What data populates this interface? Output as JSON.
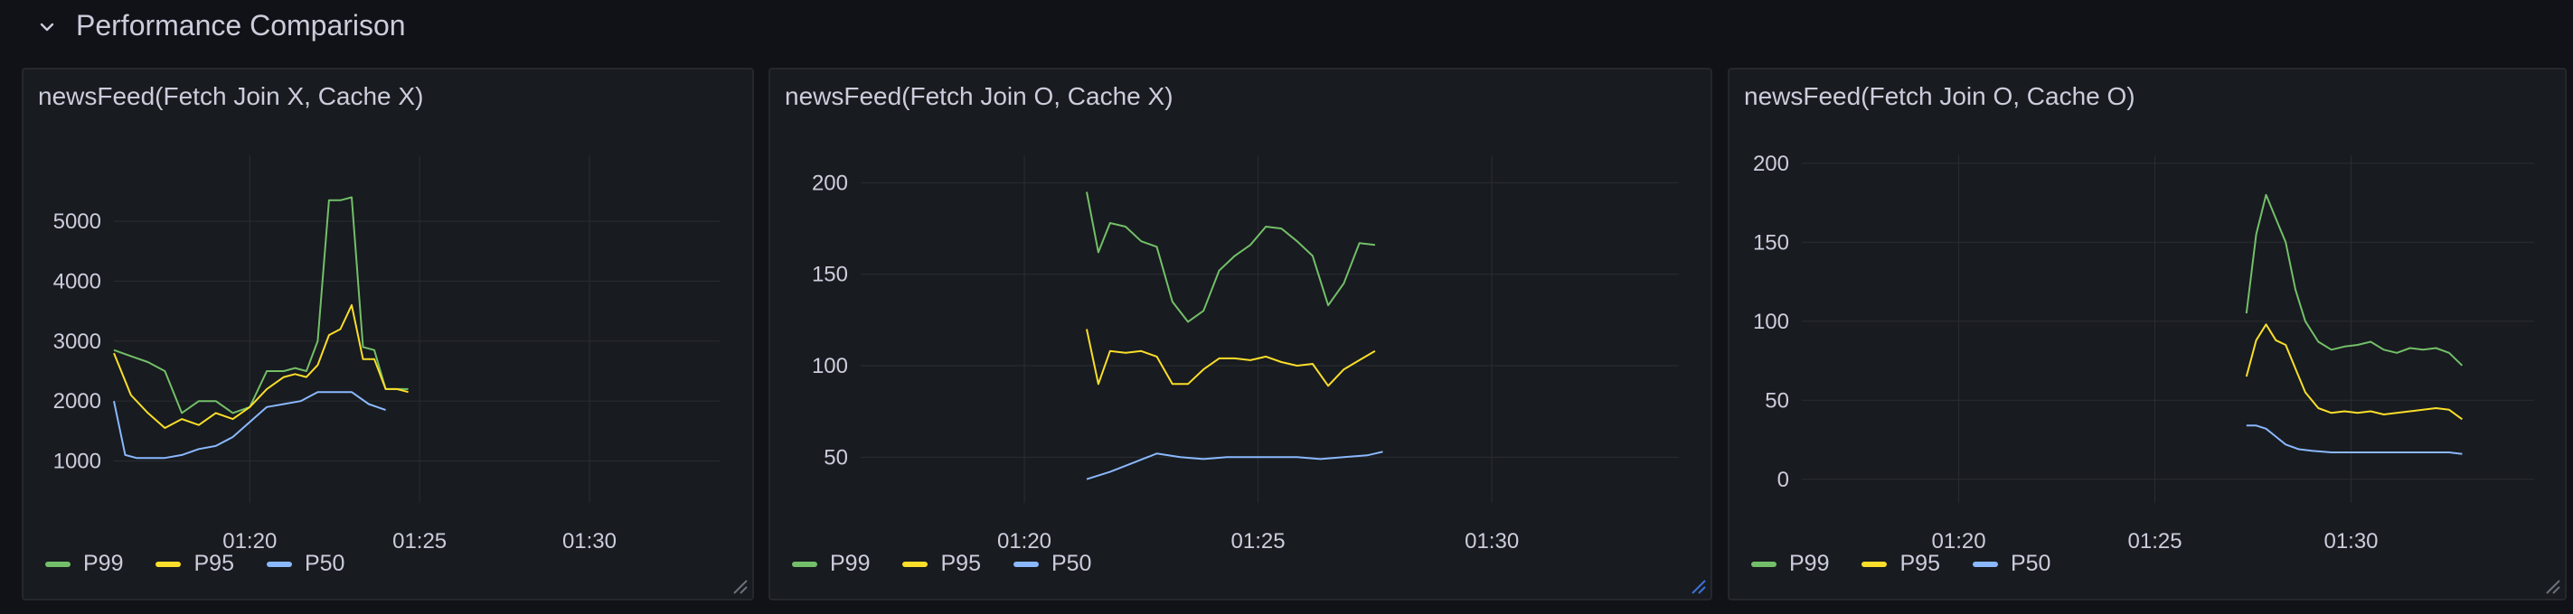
{
  "row": {
    "title": "Performance Comparison",
    "icon": "chevron-down-icon"
  },
  "colors": {
    "P99": "#73bf69",
    "P95": "#fade2a",
    "P50": "#8ab8ff",
    "grid": "#2a2d33",
    "text": "#ccccdc"
  },
  "panels": [
    {
      "title": "newsFeed(Fetch Join X, Cache X)",
      "legend": [
        "P99",
        "P95",
        "P50"
      ],
      "chart_data": {
        "type": "line",
        "title": "newsFeed(Fetch Join X, Cache X)",
        "xlabel": "",
        "ylabel": "",
        "x_range": [
          "01:16:00",
          "01:33:50"
        ],
        "x_ticks": [
          "01:20",
          "01:25",
          "01:30"
        ],
        "y_ticks": [
          1000,
          2000,
          3000,
          4000,
          5000
        ],
        "ylim": [
          300,
          6100
        ],
        "grid": true,
        "legend_position": "bottom-left",
        "series": [
          {
            "name": "P99",
            "x": [
              "01:16:00",
              "01:16:30",
              "01:17:00",
              "01:17:30",
              "01:18:00",
              "01:18:30",
              "01:19:00",
              "01:19:30",
              "01:20:00",
              "01:20:30",
              "01:21:00",
              "01:21:20",
              "01:21:40",
              "01:22:00",
              "01:22:20",
              "01:22:40",
              "01:23:00",
              "01:23:20",
              "01:23:40",
              "01:24:00",
              "01:24:20",
              "01:24:40"
            ],
            "values": [
              2850,
              2750,
              2650,
              2500,
              1800,
              2000,
              2000,
              1800,
              1900,
              2500,
              2500,
              2550,
              2500,
              3000,
              5350,
              5350,
              5400,
              2900,
              2850,
              2200,
              2200,
              2200
            ]
          },
          {
            "name": "P95",
            "x": [
              "01:16:00",
              "01:16:30",
              "01:17:00",
              "01:17:30",
              "01:18:00",
              "01:18:30",
              "01:19:00",
              "01:19:30",
              "01:20:00",
              "01:20:30",
              "01:21:00",
              "01:21:20",
              "01:21:40",
              "01:22:00",
              "01:22:20",
              "01:22:40",
              "01:23:00",
              "01:23:20",
              "01:23:40",
              "01:24:00",
              "01:24:20",
              "01:24:40"
            ],
            "values": [
              2800,
              2100,
              1800,
              1550,
              1700,
              1600,
              1800,
              1700,
              1900,
              2200,
              2400,
              2450,
              2400,
              2600,
              3100,
              3200,
              3600,
              2700,
              2700,
              2200,
              2200,
              2150
            ]
          },
          {
            "name": "P50",
            "x": [
              "01:16:00",
              "01:16:20",
              "01:16:40",
              "01:17:00",
              "01:17:30",
              "01:18:00",
              "01:18:30",
              "01:19:00",
              "01:19:30",
              "01:20:00",
              "01:20:30",
              "01:21:00",
              "01:21:30",
              "01:22:00",
              "01:22:30",
              "01:23:00",
              "01:23:30",
              "01:24:00"
            ],
            "values": [
              2000,
              1100,
              1050,
              1050,
              1050,
              1100,
              1200,
              1250,
              1400,
              1650,
              1900,
              1950,
              2000,
              2150,
              2150,
              2150,
              1950,
              1850
            ]
          }
        ]
      }
    },
    {
      "title": "newsFeed(Fetch Join O, Cache X)",
      "legend": [
        "P99",
        "P95",
        "P50"
      ],
      "chart_data": {
        "type": "line",
        "title": "newsFeed(Fetch Join O, Cache X)",
        "xlabel": "",
        "ylabel": "",
        "x_range": [
          "01:16:30",
          "01:34:00"
        ],
        "x_ticks": [
          "01:20",
          "01:25",
          "01:30"
        ],
        "y_ticks": [
          50,
          100,
          150,
          200
        ],
        "ylim": [
          25,
          215
        ],
        "grid": true,
        "legend_position": "bottom-left",
        "series": [
          {
            "name": "P99",
            "x": [
              "01:21:20",
              "01:21:35",
              "01:21:50",
              "01:22:10",
              "01:22:30",
              "01:22:50",
              "01:23:10",
              "01:23:30",
              "01:23:50",
              "01:24:10",
              "01:24:30",
              "01:24:50",
              "01:25:10",
              "01:25:30",
              "01:25:50",
              "01:26:10",
              "01:26:30",
              "01:26:50",
              "01:27:10",
              "01:27:30"
            ],
            "values": [
              195,
              162,
              178,
              176,
              168,
              165,
              135,
              124,
              130,
              152,
              160,
              166,
              176,
              175,
              168,
              160,
              133,
              145,
              167,
              166
            ]
          },
          {
            "name": "P95",
            "x": [
              "01:21:20",
              "01:21:35",
              "01:21:50",
              "01:22:10",
              "01:22:30",
              "01:22:50",
              "01:23:10",
              "01:23:30",
              "01:23:50",
              "01:24:10",
              "01:24:30",
              "01:24:50",
              "01:25:10",
              "01:25:30",
              "01:25:50",
              "01:26:10",
              "01:26:30",
              "01:26:50",
              "01:27:10",
              "01:27:30"
            ],
            "values": [
              120,
              90,
              108,
              107,
              108,
              105,
              90,
              90,
              98,
              104,
              104,
              103,
              105,
              102,
              100,
              101,
              89,
              98,
              103,
              108
            ]
          },
          {
            "name": "P50",
            "x": [
              "01:21:20",
              "01:21:50",
              "01:22:20",
              "01:22:50",
              "01:23:20",
              "01:23:50",
              "01:24:20",
              "01:24:50",
              "01:25:20",
              "01:25:50",
              "01:26:20",
              "01:26:50",
              "01:27:20",
              "01:27:40"
            ],
            "values": [
              38,
              42,
              47,
              52,
              50,
              49,
              50,
              50,
              50,
              50,
              49,
              50,
              51,
              53
            ]
          }
        ]
      }
    },
    {
      "title": "newsFeed(Fetch Join O, Cache O)",
      "legend": [
        "P99",
        "P95",
        "P50"
      ],
      "chart_data": {
        "type": "line",
        "title": "newsFeed(Fetch Join O, Cache O)",
        "xlabel": "",
        "ylabel": "",
        "x_range": [
          "01:16:00",
          "01:34:40"
        ],
        "x_ticks": [
          "01:20",
          "01:25",
          "01:30"
        ],
        "y_ticks": [
          0,
          50,
          100,
          150,
          200
        ],
        "ylim": [
          -15,
          205
        ],
        "grid": true,
        "legend_position": "bottom-left",
        "series": [
          {
            "name": "P99",
            "x": [
              "01:27:20",
              "01:27:35",
              "01:27:50",
              "01:28:05",
              "01:28:20",
              "01:28:35",
              "01:28:50",
              "01:29:10",
              "01:29:30",
              "01:29:50",
              "01:30:10",
              "01:30:30",
              "01:30:50",
              "01:31:10",
              "01:31:30",
              "01:31:50",
              "01:32:10",
              "01:32:30",
              "01:32:50"
            ],
            "values": [
              105,
              155,
              180,
              165,
              150,
              120,
              100,
              87,
              82,
              84,
              85,
              87,
              82,
              80,
              83,
              82,
              83,
              80,
              72
            ]
          },
          {
            "name": "P95",
            "x": [
              "01:27:20",
              "01:27:35",
              "01:27:50",
              "01:28:05",
              "01:28:20",
              "01:28:35",
              "01:28:50",
              "01:29:10",
              "01:29:30",
              "01:29:50",
              "01:30:10",
              "01:30:30",
              "01:30:50",
              "01:31:10",
              "01:31:30",
              "01:31:50",
              "01:32:10",
              "01:32:30",
              "01:32:50"
            ],
            "values": [
              65,
              88,
              98,
              88,
              85,
              70,
              55,
              45,
              42,
              43,
              42,
              43,
              41,
              42,
              43,
              44,
              45,
              44,
              38
            ]
          },
          {
            "name": "P50",
            "x": [
              "01:27:20",
              "01:27:35",
              "01:27:50",
              "01:28:05",
              "01:28:20",
              "01:28:40",
              "01:29:00",
              "01:29:30",
              "01:30:00",
              "01:30:30",
              "01:31:00",
              "01:31:30",
              "01:32:00",
              "01:32:30",
              "01:32:50"
            ],
            "values": [
              34,
              34,
              32,
              27,
              22,
              19,
              18,
              17,
              17,
              17,
              17,
              17,
              17,
              17,
              16
            ]
          }
        ]
      }
    }
  ]
}
